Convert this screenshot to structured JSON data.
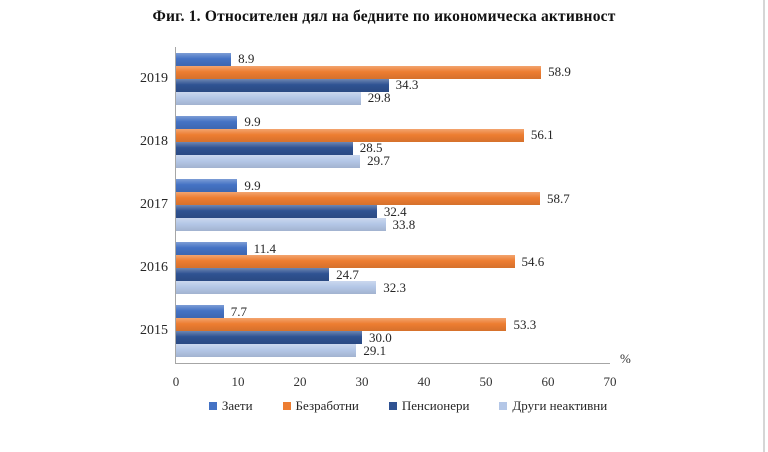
{
  "chart_data": {
    "type": "bar",
    "orientation": "horizontal",
    "title": "Фиг. 1. Относителен дял на бедните по икономическа активност",
    "unit_label": "%",
    "categories": [
      "2019",
      "2018",
      "2017",
      "2016",
      "2015"
    ],
    "series": [
      {
        "name": "Заети",
        "color": "#4472C4",
        "values": [
          "8.9",
          "9.9",
          "9.9",
          "11.4",
          "7.7"
        ]
      },
      {
        "name": "Безработни",
        "color": "#ED7D31",
        "values": [
          "58.9",
          "56.1",
          "58.7",
          "54.6",
          "53.3"
        ]
      },
      {
        "name": "Пенсионери",
        "color": "#2F5292",
        "values": [
          "34.3",
          "28.5",
          "32.4",
          "24.7",
          "30.0"
        ]
      },
      {
        "name": "Други неактивни",
        "color": "#B4C7E7",
        "values": [
          "29.8",
          "29.7",
          "33.8",
          "32.3",
          "29.1"
        ]
      }
    ],
    "xlim": [
      0,
      70
    ],
    "x_ticks": [
      "0",
      "10",
      "20",
      "30",
      "40",
      "50",
      "60",
      "70"
    ],
    "grid": false,
    "legend_position": "bottom",
    "axis_color": "#A6A6A6"
  }
}
